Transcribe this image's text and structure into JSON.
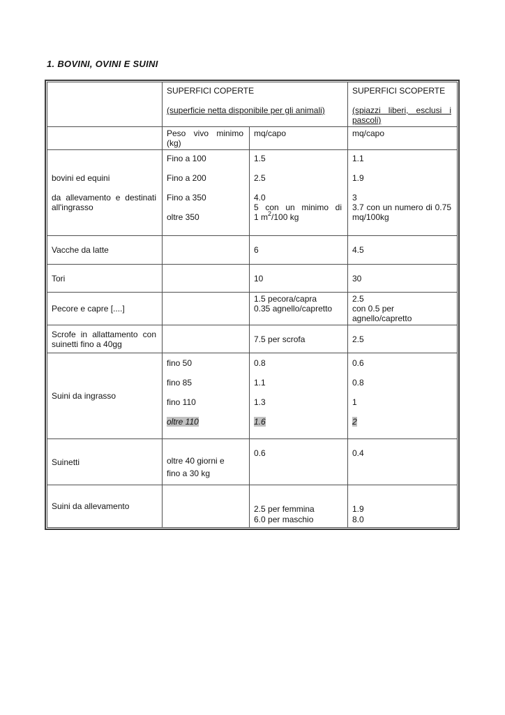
{
  "page_title": "1. BOVINI, OVINI E SUINI",
  "table": {
    "covered": {
      "title": "SUPERFICI COPERTE",
      "subtitle": "(superficie netta disponibile per gli animali)",
      "unit": "mq/capo"
    },
    "uncovered": {
      "title": "SUPERFICI SCOPERTE",
      "subtitle_lines": [
        "(spiazzi liberi, esclusi i",
        "pascoli)"
      ],
      "unit": "mq/capo"
    },
    "weight_header_lines": [
      "Peso vivo minimo",
      "(kg)"
    ],
    "highlight_color": "#c0c0c0",
    "rows": [
      {
        "name": "bovini-ed-equini",
        "label": [
          "bovini ed equini",
          "",
          {
            "text": "da allevamento e destinati",
            "justify": true
          },
          "all'ingrasso"
        ],
        "weight": [
          "Fino a 100",
          "",
          "Fino a 200",
          "",
          "Fino a 350",
          "",
          "oltre 350"
        ],
        "covered": [
          "1.5",
          "",
          "2.5",
          "",
          "4.0",
          {
            "text": "5 con un minimo di",
            "justify": true
          },
          {
            "text": "1 m",
            "sup": "2",
            "post": "/100 kg"
          }
        ],
        "uncovered": [
          "1.1",
          "",
          "1.9",
          "",
          "3",
          {
            "text": "3.7 con un numero di 0.75",
            "justify": true
          },
          "mq/100kg"
        ]
      },
      {
        "name": "vacche-da-latte",
        "label": [
          "Vacche da latte"
        ],
        "weight": [],
        "covered": [
          "6"
        ],
        "uncovered": [
          "4.5"
        ]
      },
      {
        "name": "tori",
        "label": [
          "Tori"
        ],
        "weight": [],
        "covered": [
          "10"
        ],
        "uncovered": [
          "30"
        ]
      },
      {
        "name": "pecore-e-capre",
        "label": [
          "Pecore e capre [....]"
        ],
        "weight": [],
        "covered": [
          "1.5 pecora/capra",
          "0.35 agnello/capretto"
        ],
        "uncovered": [
          "2.5",
          "con 0.5 per",
          "agnello/capretto"
        ]
      },
      {
        "name": "scrofe-in-allattamento",
        "label": [
          {
            "text": "Scrofe in allattamento con",
            "justify": true
          },
          "suinetti fino a 40gg"
        ],
        "weight": [],
        "covered": [
          "7.5 per scrofa"
        ],
        "uncovered": [
          "2.5"
        ]
      },
      {
        "name": "suini-da-ingrasso",
        "label": [
          "Suini da ingrasso"
        ],
        "weight": [
          "fino 50",
          "",
          "fino 85",
          "",
          "fino 110",
          "",
          {
            "text": "oltre 110",
            "italic": true,
            "highlight": true
          }
        ],
        "covered": [
          "0.8",
          "",
          "1.1",
          "",
          "1.3",
          "",
          {
            "text": "1.6",
            "italic": true,
            "highlight": true
          }
        ],
        "uncovered": [
          "0.6",
          "",
          "0.8",
          "",
          "1",
          "",
          {
            "text": "2",
            "italic": true,
            "highlight": true
          }
        ]
      },
      {
        "name": "suinetti",
        "label": [
          "Suinetti"
        ],
        "weight": [
          "oltre 40 giorni e",
          "fino a 30 kg"
        ],
        "covered": [
          "0.6"
        ],
        "uncovered": [
          "0.4"
        ]
      },
      {
        "name": "suini-da-allevamento",
        "label": [
          "Suini da allevamento"
        ],
        "weight": [],
        "covered": [
          "2.5 per femmina",
          "6.0 per maschio"
        ],
        "uncovered": [
          "1.9",
          "8.0"
        ]
      }
    ]
  }
}
